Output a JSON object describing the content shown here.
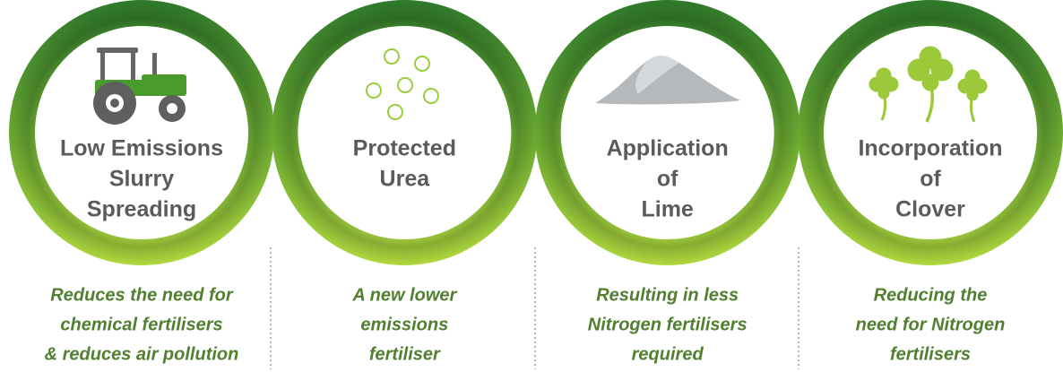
{
  "items": [
    {
      "title": [
        "Low Emissions",
        "Slurry",
        "Spreading"
      ],
      "description": [
        "Reduces the need for",
        "chemical fertilisers",
        "& reduces air pollution"
      ]
    },
    {
      "title": [
        "Protected",
        "Urea"
      ],
      "description": [
        "A new lower",
        "emissions",
        "fertiliser"
      ]
    },
    {
      "title": [
        "Application",
        "of",
        "Lime"
      ],
      "description": [
        "Resulting in less",
        "Nitrogen fertilisers",
        "required"
      ]
    },
    {
      "title": [
        "Incorporation",
        "of",
        "Clover"
      ],
      "description": [
        "Reducing the",
        "need for Nitrogen",
        "fertilisers"
      ]
    }
  ]
}
